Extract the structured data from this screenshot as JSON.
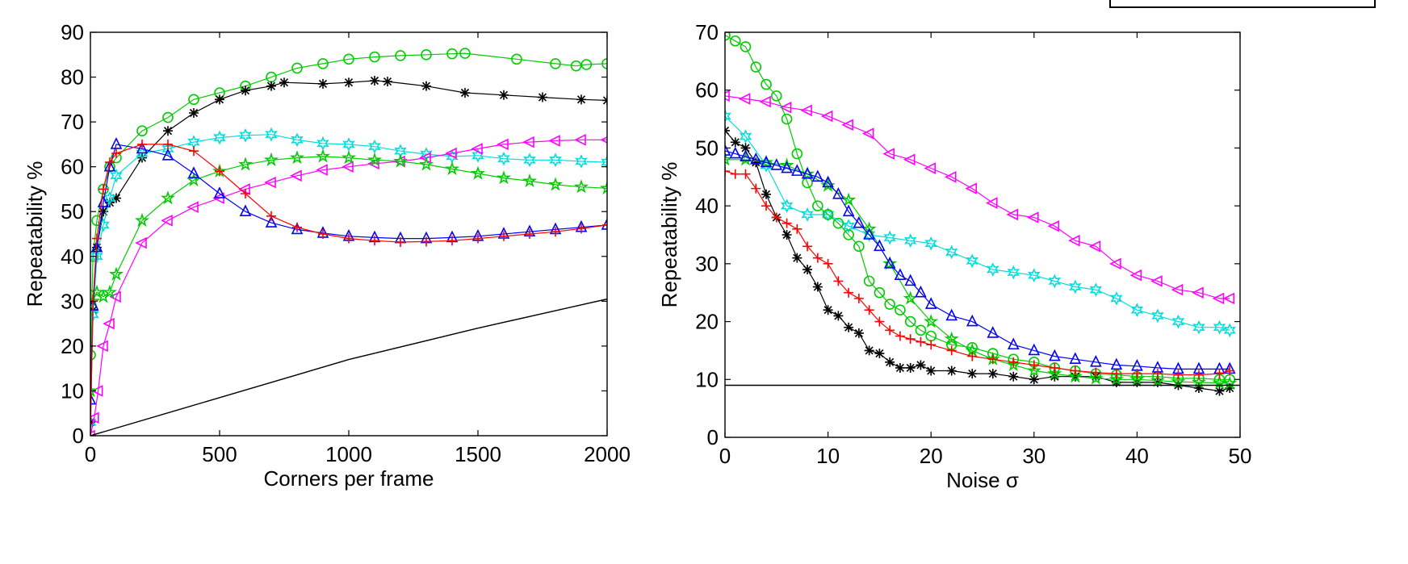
{
  "chart_data": [
    {
      "type": "line",
      "xlabel": "Corners per frame",
      "ylabel": "Repeatability %",
      "xlim": [
        0,
        2000
      ],
      "ylim": [
        0,
        90
      ],
      "xticks": [
        "0",
        "500",
        "1000",
        "1500",
        "2000"
      ],
      "xtick_values": [
        0,
        500,
        1000,
        1500,
        2000
      ],
      "yticks": [
        "0",
        "10",
        "20",
        "30",
        "40",
        "50",
        "60",
        "70",
        "80",
        "90"
      ],
      "ytick_values": [
        0,
        10,
        20,
        30,
        40,
        50,
        60,
        70,
        80,
        90
      ],
      "grid": false,
      "series": [
        {
          "name": "green-circle",
          "color": "#00cc00",
          "marker": "circle",
          "x": [
            0,
            10,
            25,
            50,
            75,
            100,
            200,
            300,
            400,
            500,
            600,
            700,
            800,
            900,
            1000,
            1100,
            1200,
            1300,
            1400,
            1450,
            1650,
            1800,
            1880,
            1920,
            2000
          ],
          "y": [
            18,
            40,
            48,
            55,
            60,
            62,
            68,
            71,
            75,
            76.5,
            78,
            80,
            82,
            83,
            84,
            84.5,
            84.8,
            85,
            85.2,
            85.3,
            84,
            83,
            82.5,
            82.8,
            83
          ]
        },
        {
          "name": "black-star",
          "color": "#000000",
          "marker": "star",
          "x": [
            0,
            10,
            25,
            50,
            75,
            100,
            200,
            300,
            400,
            500,
            600,
            700,
            750,
            900,
            1000,
            1100,
            1150,
            1300,
            1450,
            1600,
            1750,
            1900,
            2000
          ],
          "y": [
            3,
            28,
            42,
            50,
            52,
            53,
            62,
            68,
            72,
            75,
            77,
            78,
            78.8,
            78.5,
            78.8,
            79.2,
            79,
            78,
            76.5,
            76,
            75.5,
            75,
            74.8
          ]
        },
        {
          "name": "cyan-hexagram",
          "color": "#00dddd",
          "marker": "hexstar",
          "x": [
            0,
            10,
            25,
            50,
            75,
            100,
            200,
            300,
            400,
            500,
            600,
            700,
            800,
            900,
            1000,
            1100,
            1200,
            1300,
            1400,
            1500,
            1600,
            1700,
            1800,
            1900,
            2000
          ],
          "y": [
            3,
            27,
            40,
            47,
            53,
            58,
            63,
            64,
            65.5,
            66.5,
            67,
            67.2,
            66,
            65.2,
            65,
            64.5,
            63.5,
            62.8,
            62.3,
            62.5,
            61.8,
            61.5,
            61.5,
            61.2,
            61
          ]
        },
        {
          "name": "magenta-triangle-left",
          "color": "#ff00ff",
          "marker": "triangle-left",
          "x": [
            0,
            15,
            30,
            50,
            75,
            100,
            200,
            300,
            400,
            500,
            600,
            700,
            800,
            900,
            1000,
            1100,
            1200,
            1300,
            1400,
            1500,
            1600,
            1700,
            1800,
            1900,
            2000
          ],
          "y": [
            0,
            4,
            10,
            20,
            25,
            31,
            43,
            48,
            51,
            53,
            55,
            56.5,
            58,
            59.3,
            60,
            60.7,
            61.2,
            62,
            63,
            64,
            65,
            65.5,
            65.8,
            66,
            66
          ]
        },
        {
          "name": "green-pentagram",
          "color": "#00cc00",
          "marker": "pentagram",
          "x": [
            0,
            10,
            25,
            50,
            75,
            100,
            200,
            300,
            400,
            500,
            600,
            700,
            800,
            900,
            1000,
            1100,
            1200,
            1300,
            1400,
            1500,
            1600,
            1700,
            1800,
            1900,
            2000
          ],
          "y": [
            10,
            30,
            32,
            31,
            32,
            36,
            48,
            53,
            57,
            59,
            60.5,
            61.5,
            62,
            62.3,
            62,
            61.5,
            61.2,
            60.5,
            59.5,
            58.5,
            57.5,
            56.8,
            56,
            55.5,
            55.2
          ]
        },
        {
          "name": "blue-triangle-up",
          "color": "#0000ff",
          "marker": "triangle-up",
          "x": [
            0,
            10,
            25,
            50,
            75,
            100,
            200,
            300,
            400,
            500,
            600,
            700,
            800,
            900,
            1000,
            1100,
            1200,
            1300,
            1400,
            1500,
            1600,
            1700,
            1800,
            1900,
            2000
          ],
          "y": [
            8,
            29,
            42,
            52,
            60,
            65,
            64,
            62.5,
            58.5,
            54,
            50,
            47.5,
            46,
            45.2,
            44.5,
            44.2,
            44,
            44,
            44.2,
            44.5,
            45,
            45.5,
            46,
            46.5,
            47
          ]
        },
        {
          "name": "red-plus",
          "color": "#ff0000",
          "marker": "plus",
          "x": [
            0,
            10,
            25,
            50,
            75,
            100,
            200,
            300,
            400,
            500,
            600,
            700,
            800,
            900,
            1000,
            1100,
            1200,
            1300,
            1400,
            1500,
            1600,
            1700,
            1800,
            1900,
            2000
          ],
          "y": [
            0,
            30,
            44,
            55,
            61,
            63,
            65,
            65,
            63.5,
            59,
            54,
            49,
            46.5,
            45,
            44,
            43.5,
            43.2,
            43.3,
            43.5,
            44,
            44.5,
            45,
            45.5,
            46.2,
            47
          ]
        },
        {
          "name": "black-baseline",
          "color": "#000000",
          "marker": "none",
          "x": [
            0,
            500,
            1000,
            1500,
            2000
          ],
          "y": [
            0,
            8.5,
            17,
            24,
            30.5
          ]
        }
      ]
    },
    {
      "type": "line",
      "xlabel": "Noise σ",
      "ylabel": "Repeatability %",
      "xlim": [
        0,
        50
      ],
      "ylim": [
        0,
        70
      ],
      "xticks": [
        "0",
        "10",
        "20",
        "30",
        "40",
        "50"
      ],
      "xtick_values": [
        0,
        10,
        20,
        30,
        40,
        50
      ],
      "yticks": [
        "0",
        "10",
        "20",
        "30",
        "40",
        "50",
        "60",
        "70"
      ],
      "ytick_values": [
        0,
        10,
        20,
        30,
        40,
        50,
        60,
        70
      ],
      "grid": false,
      "series": [
        {
          "name": "magenta-triangle-left",
          "color": "#ff00ff",
          "marker": "triangle-left",
          "x": [
            0,
            2,
            4,
            6,
            8,
            10,
            12,
            14,
            16,
            18,
            20,
            22,
            24,
            26,
            28,
            30,
            32,
            34,
            36,
            38,
            40,
            42,
            44,
            46,
            48,
            49
          ],
          "y": [
            59,
            58.5,
            58,
            57,
            56.5,
            55.5,
            54,
            52.5,
            49,
            48,
            46.5,
            45,
            43,
            40.5,
            38.5,
            38,
            36.5,
            34,
            33,
            30,
            28,
            27,
            25.5,
            25,
            24,
            24
          ]
        },
        {
          "name": "cyan-hexagram",
          "color": "#00dddd",
          "marker": "hexstar",
          "x": [
            0,
            2,
            4,
            6,
            8,
            10,
            12,
            14,
            16,
            18,
            20,
            22,
            24,
            26,
            28,
            30,
            32,
            34,
            36,
            38,
            40,
            42,
            44,
            46,
            48,
            49
          ],
          "y": [
            55.5,
            52,
            47,
            40,
            38.5,
            38.5,
            36.5,
            35,
            34.5,
            34,
            33.5,
            32,
            30.5,
            29,
            28.5,
            28,
            27,
            26,
            25.5,
            24,
            22,
            21,
            20,
            19,
            19,
            18.5
          ]
        },
        {
          "name": "green-circle",
          "color": "#00cc00",
          "marker": "circle",
          "x": [
            0,
            1,
            2,
            3,
            4,
            5,
            6,
            7,
            8,
            9,
            10,
            11,
            12,
            13,
            14,
            15,
            16,
            17,
            18,
            19,
            20,
            22,
            24,
            26,
            28,
            30,
            32,
            34,
            36,
            38,
            40,
            42,
            44,
            46,
            48,
            49
          ],
          "y": [
            69.5,
            68.5,
            67.5,
            64,
            61,
            59,
            55,
            49,
            44,
            40,
            38.5,
            37,
            35,
            33,
            27,
            25,
            23,
            22,
            20,
            18.5,
            17.5,
            16,
            15.5,
            14.5,
            13.5,
            13,
            12,
            11.5,
            11,
            10.8,
            10.5,
            10.5,
            10.2,
            10.2,
            10,
            10
          ]
        },
        {
          "name": "black-star",
          "color": "#000000",
          "marker": "star",
          "x": [
            0,
            1,
            2,
            3,
            4,
            5,
            6,
            7,
            8,
            9,
            10,
            11,
            12,
            13,
            14,
            15,
            16,
            17,
            18,
            19,
            20,
            22,
            24,
            26,
            28,
            30,
            32,
            34,
            36,
            38,
            40,
            42,
            44,
            46,
            48,
            49
          ],
          "y": [
            53,
            51,
            50,
            47.5,
            42,
            38,
            35,
            31,
            29,
            26,
            22,
            21,
            19,
            18,
            15,
            14.5,
            13,
            12,
            12,
            12.5,
            11.5,
            11.5,
            11,
            11,
            10.5,
            10,
            10.5,
            10.5,
            10.5,
            9.5,
            9.5,
            9.5,
            9,
            8.5,
            8,
            8.5
          ]
        },
        {
          "name": "green-pentagram",
          "color": "#00cc00",
          "marker": "pentagram",
          "x": [
            0,
            2,
            4,
            6,
            8,
            10,
            12,
            14,
            16,
            18,
            20,
            22,
            24,
            26,
            28,
            30,
            32,
            34,
            36,
            38,
            40,
            42,
            44,
            46,
            48,
            49
          ],
          "y": [
            48,
            48,
            47.5,
            47,
            45.5,
            43.5,
            41,
            36,
            30,
            24,
            20,
            17,
            15,
            13.5,
            12.5,
            11.5,
            11,
            10.5,
            10.2,
            10,
            10,
            9.8,
            9.6,
            9.5,
            9.4,
            9.3
          ]
        },
        {
          "name": "blue-triangle-up",
          "color": "#0000ff",
          "marker": "triangle-up",
          "x": [
            0,
            1,
            2,
            3,
            4,
            5,
            6,
            7,
            8,
            9,
            10,
            11,
            12,
            13,
            14,
            15,
            16,
            17,
            18,
            19,
            20,
            22,
            24,
            26,
            28,
            30,
            32,
            34,
            36,
            38,
            40,
            42,
            44,
            46,
            48,
            49
          ],
          "y": [
            49.5,
            49,
            48.5,
            48,
            47.5,
            47,
            46.5,
            46,
            45.5,
            45,
            44,
            42,
            39,
            37,
            35,
            33,
            30,
            28,
            27,
            25,
            23,
            21,
            20,
            18,
            16,
            15,
            14,
            13.5,
            13,
            12.5,
            12.3,
            12,
            11.8,
            11.8,
            11.8,
            11.8
          ]
        },
        {
          "name": "red-plus",
          "color": "#ff0000",
          "marker": "plus",
          "x": [
            0,
            1,
            2,
            3,
            4,
            5,
            6,
            7,
            8,
            9,
            10,
            11,
            12,
            13,
            14,
            15,
            16,
            17,
            18,
            19,
            20,
            22,
            24,
            26,
            28,
            30,
            32,
            34,
            36,
            38,
            40,
            42,
            44,
            46,
            48,
            49
          ],
          "y": [
            46,
            45.5,
            45.5,
            43,
            40,
            38,
            37,
            36,
            33,
            31,
            30,
            27,
            25,
            24,
            22,
            20,
            18.5,
            17.5,
            17,
            16.5,
            16,
            15,
            14,
            13.5,
            13,
            12.5,
            12,
            11.5,
            11.2,
            11,
            11,
            11,
            10.8,
            10.8,
            11,
            11.5
          ]
        },
        {
          "name": "black-baseline",
          "color": "#000000",
          "marker": "none",
          "x": [
            0,
            50
          ],
          "y": [
            9,
            9
          ]
        }
      ]
    }
  ]
}
